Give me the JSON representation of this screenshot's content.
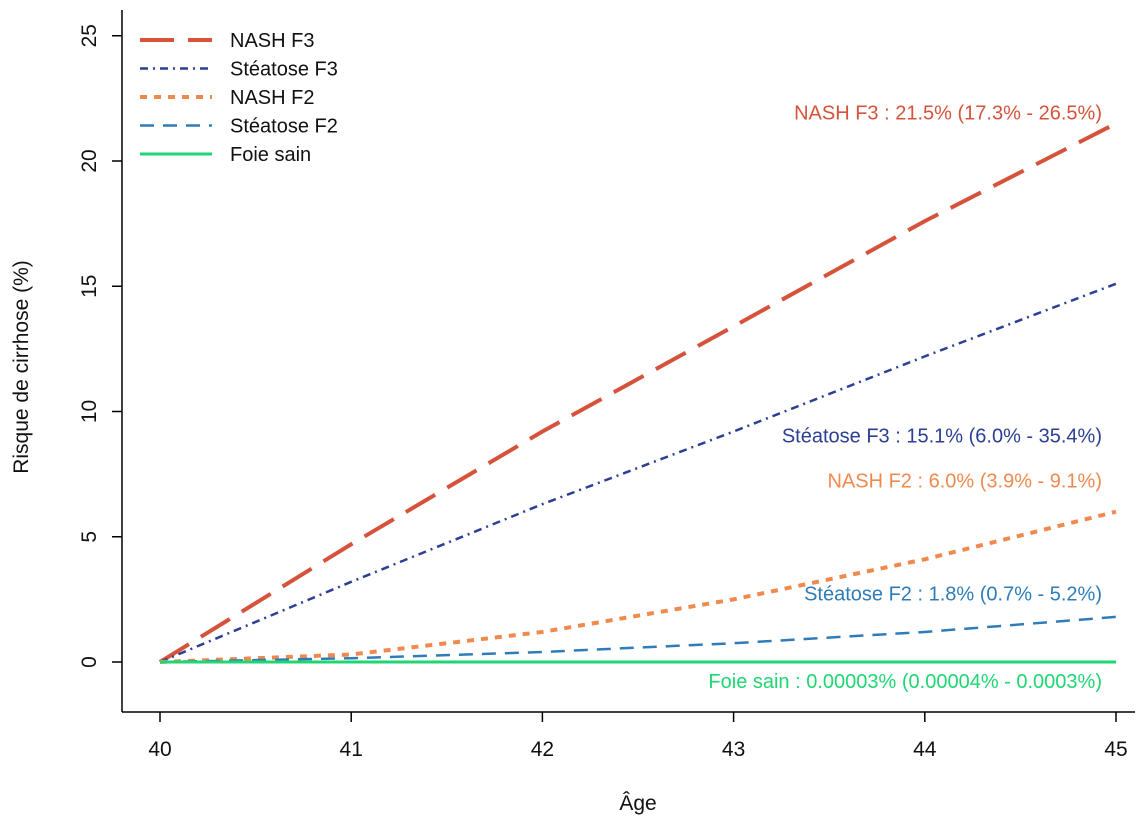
{
  "chart_data": {
    "type": "line",
    "title": "",
    "xlabel": "Âge",
    "ylabel": "Risque de cirrhose (%)",
    "xlim": [
      40,
      45
    ],
    "ylim": [
      -1.9,
      25.8
    ],
    "xticks": [
      "40",
      "41",
      "42",
      "43",
      "44",
      "45"
    ],
    "yticks": [
      "0",
      "5",
      "10",
      "15",
      "20",
      "25"
    ],
    "grid": false,
    "legend_position": "top-left",
    "x": [
      40,
      41,
      42,
      43,
      44,
      45
    ],
    "series": [
      {
        "name": "NASH F3",
        "color": "#D6533B",
        "style": "long-dash",
        "values": [
          0,
          4.7,
          9.2,
          13.4,
          17.6,
          21.5
        ]
      },
      {
        "name": "Stéatose F3",
        "color": "#2B3F94",
        "style": "dash-dot",
        "values": [
          0,
          3.2,
          6.3,
          9.2,
          12.2,
          15.1
        ]
      },
      {
        "name": "NASH F2",
        "color": "#F0894E",
        "style": "dotted",
        "values": [
          0,
          0.3,
          1.2,
          2.5,
          4.1,
          6.0
        ]
      },
      {
        "name": "Stéatose F2",
        "color": "#2E7DB8",
        "style": "dashed",
        "values": [
          0,
          0.15,
          0.4,
          0.75,
          1.2,
          1.8
        ]
      },
      {
        "name": "Foie sain",
        "color": "#1FD673",
        "style": "solid",
        "values": [
          0,
          0,
          0,
          0,
          0,
          0
        ]
      }
    ],
    "annotations": [
      {
        "text": "NASH F3 : 21.5% (17.3% - 26.5%)",
        "color": "#D6533B",
        "x": 45,
        "y": 21.5
      },
      {
        "text": "Stéatose F3 : 15.1% (6.0% - 35.4%)",
        "color": "#2B3F94",
        "x": 45,
        "y": 8.6
      },
      {
        "text": "NASH F2 : 6.0% (3.9% - 9.1%)",
        "color": "#F0894E",
        "x": 45,
        "y": 6.8
      },
      {
        "text": "Stéatose F2 : 1.8% (0.7% - 5.2%)",
        "color": "#2E7DB8",
        "x": 45,
        "y": 2.3
      },
      {
        "text": "Foie sain : 0.00003% (0.00004% - 0.0003%)",
        "color": "#1FD673",
        "x": 45,
        "y": -1.2
      }
    ]
  }
}
